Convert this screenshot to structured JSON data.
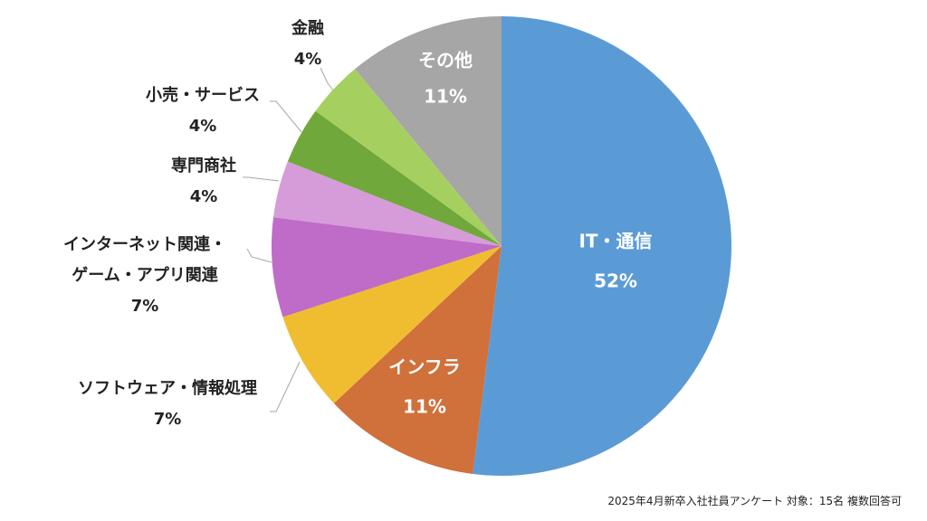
{
  "chart_data": {
    "type": "pie",
    "slices": [
      {
        "label": "IT・通信",
        "value": 52,
        "percent_label": "52%",
        "color": "#5b9bd5",
        "label_style": "inside"
      },
      {
        "label": "インフラ",
        "value": 11,
        "percent_label": "11%",
        "color": "#d0703a",
        "label_style": "inside"
      },
      {
        "label": "ソフトウェア・情報処理",
        "value": 7,
        "percent_label": "7%",
        "color": "#f0bd30",
        "label_style": "outside"
      },
      {
        "label_lines": [
          "インターネット関連・",
          "ゲーム・アプリ関連"
        ],
        "value": 7,
        "percent_label": "7%",
        "color": "#bf6bc8",
        "label_style": "outside"
      },
      {
        "label": "専門商社",
        "value": 4,
        "percent_label": "4%",
        "color": "#d59cd9",
        "label_style": "outside"
      },
      {
        "label": "小売・サービス",
        "value": 4,
        "percent_label": "4%",
        "color": "#70a83c",
        "label_style": "outside"
      },
      {
        "label": "金融",
        "value": 4,
        "percent_label": "4%",
        "color": "#a5d060",
        "label_style": "outside"
      },
      {
        "label": "その他",
        "value": 11,
        "percent_label": "11%",
        "color": "#a6a6a6",
        "label_style": "inside"
      }
    ],
    "start_angle": "12 o'clock",
    "direction": "clockwise",
    "legend": "none"
  },
  "footnote": "2025年4月新卒入社社員アンケート  対象：15名 複数回答可"
}
